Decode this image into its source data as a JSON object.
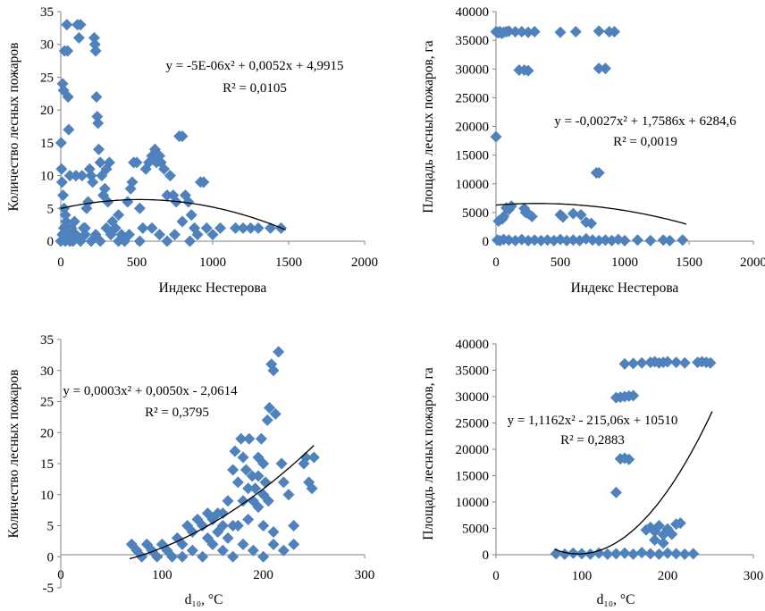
{
  "chart_data": [
    {
      "type": "scatter",
      "id": "c1",
      "xlabel": "Индекс Нестерова",
      "ylabel": "Количество лесных пожаров",
      "xlim": [
        0,
        2000
      ],
      "ylim": [
        0,
        35
      ],
      "xticks": [
        0,
        500,
        1000,
        1500,
        2000
      ],
      "xtick_labels": [
        "0",
        "500",
        "1000",
        "1500",
        "2000"
      ],
      "yticks": [
        0,
        5,
        10,
        15,
        20,
        25,
        30,
        35
      ],
      "ytick_labels": [
        "0",
        "5",
        "10",
        "15",
        "20",
        "25",
        "30",
        "35"
      ],
      "equation": "y = -5E-06x² + 0,0052x + 4,9915",
      "r2": "R² = 0,0105",
      "trend": {
        "a": -5e-06,
        "b": 0.0052,
        "c": 4.9915,
        "x_range": [
          0,
          1480
        ]
      },
      "points": [
        [
          2,
          15
        ],
        [
          5,
          11
        ],
        [
          12,
          24
        ],
        [
          18,
          23
        ],
        [
          25,
          29
        ],
        [
          40,
          33
        ],
        [
          45,
          29
        ],
        [
          48,
          22
        ],
        [
          52,
          17
        ],
        [
          60,
          10
        ],
        [
          8,
          9
        ],
        [
          15,
          7
        ],
        [
          22,
          5
        ],
        [
          30,
          4
        ],
        [
          35,
          3
        ],
        [
          40,
          2
        ],
        [
          50,
          1
        ],
        [
          60,
          1
        ],
        [
          70,
          2
        ],
        [
          80,
          0
        ],
        [
          90,
          3
        ],
        [
          100,
          10
        ],
        [
          110,
          33
        ],
        [
          120,
          31
        ],
        [
          130,
          33
        ],
        [
          140,
          10
        ],
        [
          150,
          2
        ],
        [
          160,
          1
        ],
        [
          170,
          5
        ],
        [
          180,
          6
        ],
        [
          190,
          11
        ],
        [
          200,
          10
        ],
        [
          210,
          9
        ],
        [
          220,
          31
        ],
        [
          225,
          30
        ],
        [
          230,
          29
        ],
        [
          235,
          22
        ],
        [
          240,
          19
        ],
        [
          245,
          18
        ],
        [
          250,
          14
        ],
        [
          260,
          12
        ],
        [
          270,
          10
        ],
        [
          280,
          7
        ],
        [
          290,
          8
        ],
        [
          300,
          11
        ],
        [
          310,
          6
        ],
        [
          320,
          12
        ],
        [
          340,
          3
        ],
        [
          360,
          2
        ],
        [
          380,
          4
        ],
        [
          400,
          1
        ],
        [
          420,
          0
        ],
        [
          440,
          6
        ],
        [
          460,
          8
        ],
        [
          470,
          9
        ],
        [
          480,
          12
        ],
        [
          500,
          12
        ],
        [
          520,
          5
        ],
        [
          540,
          2
        ],
        [
          560,
          11
        ],
        [
          580,
          12
        ],
        [
          600,
          13
        ],
        [
          620,
          14
        ],
        [
          630,
          12
        ],
        [
          650,
          13
        ],
        [
          660,
          12
        ],
        [
          680,
          11
        ],
        [
          700,
          7
        ],
        [
          720,
          10
        ],
        [
          740,
          7
        ],
        [
          760,
          6
        ],
        [
          780,
          16
        ],
        [
          800,
          16
        ],
        [
          820,
          7
        ],
        [
          840,
          6
        ],
        [
          860,
          4
        ],
        [
          880,
          2
        ],
        [
          900,
          1
        ],
        [
          920,
          9
        ],
        [
          940,
          9
        ],
        [
          960,
          2
        ],
        [
          1000,
          1
        ],
        [
          1050,
          2
        ],
        [
          1150,
          2
        ],
        [
          1200,
          2
        ],
        [
          1250,
          2
        ],
        [
          1300,
          2
        ],
        [
          1380,
          2
        ],
        [
          1450,
          2
        ],
        [
          0,
          0
        ],
        [
          10,
          1
        ],
        [
          20,
          2
        ],
        [
          30,
          0
        ],
        [
          60,
          0
        ],
        [
          100,
          1
        ],
        [
          130,
          0
        ],
        [
          160,
          2
        ],
        [
          200,
          0
        ],
        [
          230,
          1
        ],
        [
          260,
          0
        ],
        [
          300,
          2
        ],
        [
          330,
          1
        ],
        [
          380,
          0
        ],
        [
          450,
          1
        ],
        [
          520,
          0
        ],
        [
          600,
          2
        ],
        [
          650,
          1
        ],
        [
          700,
          0
        ],
        [
          750,
          1
        ],
        [
          800,
          3
        ],
        [
          850,
          0
        ]
      ]
    },
    {
      "type": "scatter",
      "id": "c2",
      "xlabel": "Индекс Нестерова",
      "ylabel": "Площадь лесных пожаров, га",
      "xlim": [
        0,
        2000
      ],
      "ylim": [
        0,
        40000
      ],
      "xticks": [
        0,
        500,
        1000,
        1500,
        2000
      ],
      "xtick_labels": [
        "0",
        "500",
        "1000",
        "1500",
        "2000"
      ],
      "yticks": [
        0,
        5000,
        10000,
        15000,
        20000,
        25000,
        30000,
        35000,
        40000
      ],
      "ytick_labels": [
        "0",
        "5000",
        "10000",
        "15000",
        "20000",
        "25000",
        "30000",
        "35000",
        "40000"
      ],
      "equation": "y = -0,0027x² + 1,7586x + 6284,6",
      "r2": "R² = 0,0019",
      "trend": {
        "a": -0.0027,
        "b": 1.7586,
        "c": 6284.6,
        "x_range": [
          0,
          1480
        ]
      },
      "points": [
        [
          0,
          36500
        ],
        [
          10,
          36400
        ],
        [
          20,
          36300
        ],
        [
          30,
          36500
        ],
        [
          45,
          36200
        ],
        [
          60,
          36400
        ],
        [
          80,
          36500
        ],
        [
          100,
          36600
        ],
        [
          150,
          36500
        ],
        [
          200,
          36500
        ],
        [
          250,
          36400
        ],
        [
          300,
          36500
        ],
        [
          500,
          36400
        ],
        [
          620,
          36500
        ],
        [
          800,
          36600
        ],
        [
          880,
          36500
        ],
        [
          920,
          36500
        ],
        [
          180,
          29800
        ],
        [
          220,
          29800
        ],
        [
          250,
          29700
        ],
        [
          800,
          30100
        ],
        [
          850,
          30100
        ],
        [
          780,
          11900
        ],
        [
          800,
          11900
        ],
        [
          0,
          18200
        ],
        [
          20,
          3500
        ],
        [
          50,
          3900
        ],
        [
          60,
          4300
        ],
        [
          80,
          5800
        ],
        [
          100,
          5500
        ],
        [
          120,
          6100
        ],
        [
          220,
          5700
        ],
        [
          230,
          5000
        ],
        [
          250,
          4800
        ],
        [
          280,
          4300
        ],
        [
          500,
          4600
        ],
        [
          520,
          4200
        ],
        [
          600,
          4800
        ],
        [
          700,
          3300
        ],
        [
          740,
          3100
        ],
        [
          660,
          4600
        ],
        [
          10,
          200
        ],
        [
          30,
          100
        ],
        [
          60,
          300
        ],
        [
          100,
          200
        ],
        [
          150,
          100
        ],
        [
          200,
          300
        ],
        [
          250,
          100
        ],
        [
          300,
          200
        ],
        [
          350,
          100
        ],
        [
          400,
          200
        ],
        [
          450,
          100
        ],
        [
          500,
          300
        ],
        [
          550,
          100
        ],
        [
          600,
          200
        ],
        [
          650,
          100
        ],
        [
          700,
          400
        ],
        [
          750,
          200
        ],
        [
          800,
          100
        ],
        [
          850,
          200
        ],
        [
          900,
          100
        ],
        [
          950,
          300
        ],
        [
          1000,
          100
        ],
        [
          1100,
          200
        ],
        [
          1200,
          100
        ],
        [
          1300,
          200
        ],
        [
          1350,
          100
        ],
        [
          1450,
          200
        ]
      ]
    },
    {
      "type": "scatter",
      "id": "c3",
      "xlabel": "d₁₀, °C",
      "ylabel": "Количество лесных пожаров",
      "xlim": [
        0,
        300
      ],
      "ylim": [
        -5,
        35
      ],
      "xticks": [
        0,
        100,
        200,
        300
      ],
      "xtick_labels": [
        "0",
        "100",
        "200",
        "300"
      ],
      "yticks": [
        -5,
        0,
        5,
        10,
        15,
        20,
        25,
        30,
        35
      ],
      "ytick_labels": [
        "-5",
        "0",
        "5",
        "10",
        "15",
        "20",
        "25",
        "30",
        "35"
      ],
      "equation": "y = 0,0003x² + 0,0050x - 2,0614",
      "r2": "R² = 0,3795",
      "trend": {
        "a": 0.0003,
        "b": 0.005,
        "c": -2.0614,
        "x_range": [
          68,
          250
        ]
      },
      "points": [
        [
          70,
          2
        ],
        [
          75,
          1
        ],
        [
          80,
          0
        ],
        [
          85,
          2
        ],
        [
          90,
          1
        ],
        [
          95,
          0
        ],
        [
          100,
          2
        ],
        [
          105,
          1
        ],
        [
          110,
          0
        ],
        [
          115,
          3
        ],
        [
          120,
          2
        ],
        [
          125,
          5
        ],
        [
          130,
          4
        ],
        [
          135,
          6
        ],
        [
          140,
          5
        ],
        [
          145,
          7
        ],
        [
          150,
          6
        ],
        [
          155,
          7
        ],
        [
          160,
          5
        ],
        [
          165,
          9
        ],
        [
          170,
          14
        ],
        [
          172,
          17
        ],
        [
          175,
          12
        ],
        [
          178,
          19
        ],
        [
          180,
          16
        ],
        [
          183,
          14
        ],
        [
          186,
          19
        ],
        [
          189,
          13
        ],
        [
          192,
          11
        ],
        [
          195,
          16
        ],
        [
          198,
          19
        ],
        [
          200,
          15
        ],
        [
          202,
          12
        ],
        [
          204,
          22
        ],
        [
          206,
          24
        ],
        [
          208,
          31
        ],
        [
          210,
          30
        ],
        [
          212,
          23
        ],
        [
          215,
          33
        ],
        [
          218,
          15
        ],
        [
          220,
          12
        ],
        [
          225,
          10
        ],
        [
          230,
          5
        ],
        [
          240,
          15
        ],
        [
          242,
          16
        ],
        [
          245,
          12
        ],
        [
          248,
          11
        ],
        [
          250,
          16
        ],
        [
          120,
          0
        ],
        [
          130,
          1
        ],
        [
          140,
          0
        ],
        [
          150,
          2
        ],
        [
          160,
          1
        ],
        [
          170,
          0
        ],
        [
          180,
          2
        ],
        [
          190,
          1
        ],
        [
          200,
          0
        ],
        [
          210,
          2
        ],
        [
          220,
          1
        ],
        [
          230,
          2
        ],
        [
          165,
          3
        ],
        [
          175,
          5
        ],
        [
          185,
          6
        ],
        [
          190,
          9
        ],
        [
          195,
          8
        ],
        [
          200,
          5
        ],
        [
          205,
          9
        ],
        [
          210,
          4
        ],
        [
          145,
          3
        ],
        [
          155,
          4
        ],
        [
          160,
          7
        ],
        [
          170,
          5
        ],
        [
          180,
          9
        ],
        [
          185,
          11
        ],
        [
          195,
          13
        ],
        [
          200,
          10
        ]
      ]
    },
    {
      "type": "scatter",
      "id": "c4",
      "xlabel": "d₁₀, °C",
      "ylabel": "Площадь лесных пожаров, га",
      "xlim": [
        0,
        300
      ],
      "ylim": [
        0,
        40000
      ],
      "xticks": [
        0,
        100,
        200,
        300
      ],
      "xtick_labels": [
        "0",
        "100",
        "200",
        "300"
      ],
      "yticks": [
        0,
        5000,
        10000,
        15000,
        20000,
        25000,
        30000,
        35000,
        40000
      ],
      "ytick_labels": [
        "0",
        "5000",
        "10000",
        "15000",
        "20000",
        "25000",
        "30000",
        "35000",
        "40000"
      ],
      "equation": "y = 1,1162x² - 215,06x + 10510",
      "r2": "R² = 0,2883",
      "trend": {
        "a": 1.1162,
        "b": -215.06,
        "c": 10510,
        "x_range": [
          68,
          252
        ]
      },
      "points": [
        [
          70,
          200
        ],
        [
          80,
          100
        ],
        [
          90,
          300
        ],
        [
          100,
          200
        ],
        [
          110,
          100
        ],
        [
          120,
          300
        ],
        [
          130,
          100
        ],
        [
          140,
          200
        ],
        [
          150,
          300
        ],
        [
          160,
          100
        ],
        [
          170,
          400
        ],
        [
          180,
          200
        ],
        [
          190,
          100
        ],
        [
          200,
          300
        ],
        [
          210,
          200
        ],
        [
          220,
          100
        ],
        [
          230,
          200
        ],
        [
          140,
          29800
        ],
        [
          145,
          29900
        ],
        [
          150,
          30000
        ],
        [
          155,
          30100
        ],
        [
          160,
          30200
        ],
        [
          145,
          18200
        ],
        [
          150,
          18300
        ],
        [
          155,
          18100
        ],
        [
          140,
          11800
        ],
        [
          150,
          36200
        ],
        [
          160,
          36300
        ],
        [
          170,
          36400
        ],
        [
          180,
          36500
        ],
        [
          185,
          36600
        ],
        [
          190,
          36400
        ],
        [
          195,
          36500
        ],
        [
          200,
          36600
        ],
        [
          210,
          36500
        ],
        [
          220,
          36400
        ],
        [
          235,
          36500
        ],
        [
          240,
          36600
        ],
        [
          245,
          36500
        ],
        [
          250,
          36400
        ],
        [
          175,
          4700
        ],
        [
          180,
          5200
        ],
        [
          185,
          4400
        ],
        [
          190,
          5500
        ],
        [
          195,
          3800
        ],
        [
          200,
          4900
        ],
        [
          205,
          3900
        ],
        [
          210,
          5800
        ],
        [
          215,
          6000
        ],
        [
          185,
          2800
        ],
        [
          195,
          2200
        ]
      ]
    }
  ]
}
